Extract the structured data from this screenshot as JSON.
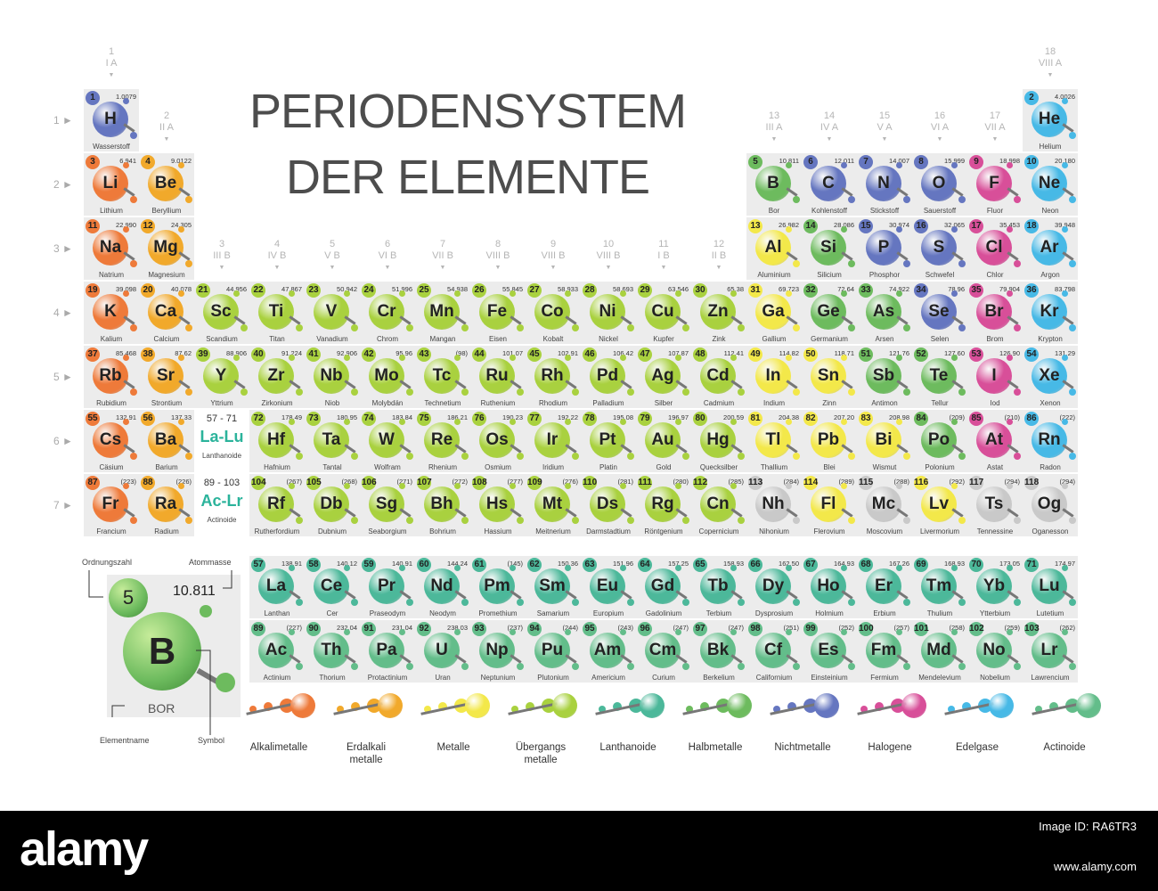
{
  "title_line1": "PERIODENSYSTEM",
  "title_line2": "DER ELEMENTE",
  "colors": {
    "alkali": "#ee7a3a",
    "alkaline": "#f1a92b",
    "metal": "#f3e84a",
    "transition": "#a9d13f",
    "lanthanide": "#4cb89a",
    "metalloid": "#6dbb5e",
    "nonmetal": "#6576c0",
    "halogen": "#d84f99",
    "noble": "#47b9e6",
    "actinide": "#63bd8a",
    "unknown": "#c9c9c9"
  },
  "groups": [
    {
      "n": "1",
      "r": "I A"
    },
    {
      "n": "2",
      "r": "II A"
    },
    {
      "n": "3",
      "r": "III B"
    },
    {
      "n": "4",
      "r": "IV B"
    },
    {
      "n": "5",
      "r": "V B"
    },
    {
      "n": "6",
      "r": "VI B"
    },
    {
      "n": "7",
      "r": "VII B"
    },
    {
      "n": "8",
      "r": "VIII B"
    },
    {
      "n": "9",
      "r": "VIII B"
    },
    {
      "n": "10",
      "r": "VIII B"
    },
    {
      "n": "11",
      "r": "I B"
    },
    {
      "n": "12",
      "r": "II B"
    },
    {
      "n": "13",
      "r": "III A"
    },
    {
      "n": "14",
      "r": "IV A"
    },
    {
      "n": "15",
      "r": "V A"
    },
    {
      "n": "16",
      "r": "VI A"
    },
    {
      "n": "17",
      "r": "VII A"
    },
    {
      "n": "18",
      "r": "VIII A"
    }
  ],
  "periods": [
    "1 ►",
    "2 ►",
    "3 ►",
    "4 ►",
    "5 ►",
    "6 ►",
    "7 ►"
  ],
  "placeholders": [
    {
      "range": "57 - 71",
      "sym": "La-Lu",
      "name": "Lanthanoide",
      "row": 6
    },
    {
      "range": "89 - 103",
      "sym": "Ac-Lr",
      "name": "Actinoide",
      "row": 7
    }
  ],
  "elements": [
    {
      "z": 1,
      "s": "H",
      "m": "1.0079",
      "n": "Wasserstoff",
      "g": 1,
      "p": 1,
      "c": "nonmetal"
    },
    {
      "z": 2,
      "s": "He",
      "m": "4.0026",
      "n": "Helium",
      "g": 18,
      "p": 1,
      "c": "noble"
    },
    {
      "z": 3,
      "s": "Li",
      "m": "6.941",
      "n": "Lithium",
      "g": 1,
      "p": 2,
      "c": "alkali"
    },
    {
      "z": 4,
      "s": "Be",
      "m": "9.0122",
      "n": "Beryllium",
      "g": 2,
      "p": 2,
      "c": "alkaline"
    },
    {
      "z": 5,
      "s": "B",
      "m": "10.811",
      "n": "Bor",
      "g": 13,
      "p": 2,
      "c": "metalloid"
    },
    {
      "z": 6,
      "s": "C",
      "m": "12.011",
      "n": "Kohlenstoff",
      "g": 14,
      "p": 2,
      "c": "nonmetal"
    },
    {
      "z": 7,
      "s": "N",
      "m": "14.007",
      "n": "Stickstoff",
      "g": 15,
      "p": 2,
      "c": "nonmetal"
    },
    {
      "z": 8,
      "s": "O",
      "m": "15.999",
      "n": "Sauerstoff",
      "g": 16,
      "p": 2,
      "c": "nonmetal"
    },
    {
      "z": 9,
      "s": "F",
      "m": "18.998",
      "n": "Fluor",
      "g": 17,
      "p": 2,
      "c": "halogen"
    },
    {
      "z": 10,
      "s": "Ne",
      "m": "20.180",
      "n": "Neon",
      "g": 18,
      "p": 2,
      "c": "noble"
    },
    {
      "z": 11,
      "s": "Na",
      "m": "22.990",
      "n": "Natrium",
      "g": 1,
      "p": 3,
      "c": "alkali"
    },
    {
      "z": 12,
      "s": "Mg",
      "m": "24.305",
      "n": "Magnesium",
      "g": 2,
      "p": 3,
      "c": "alkaline"
    },
    {
      "z": 13,
      "s": "Al",
      "m": "26.982",
      "n": "Aluminium",
      "g": 13,
      "p": 3,
      "c": "metal"
    },
    {
      "z": 14,
      "s": "Si",
      "m": "28.086",
      "n": "Silicium",
      "g": 14,
      "p": 3,
      "c": "metalloid"
    },
    {
      "z": 15,
      "s": "P",
      "m": "30.974",
      "n": "Phosphor",
      "g": 15,
      "p": 3,
      "c": "nonmetal"
    },
    {
      "z": 16,
      "s": "S",
      "m": "32.065",
      "n": "Schwefel",
      "g": 16,
      "p": 3,
      "c": "nonmetal"
    },
    {
      "z": 17,
      "s": "Cl",
      "m": "35.453",
      "n": "Chlor",
      "g": 17,
      "p": 3,
      "c": "halogen"
    },
    {
      "z": 18,
      "s": "Ar",
      "m": "39.948",
      "n": "Argon",
      "g": 18,
      "p": 3,
      "c": "noble"
    },
    {
      "z": 19,
      "s": "K",
      "m": "39.098",
      "n": "Kalium",
      "g": 1,
      "p": 4,
      "c": "alkali"
    },
    {
      "z": 20,
      "s": "Ca",
      "m": "40.078",
      "n": "Calcium",
      "g": 2,
      "p": 4,
      "c": "alkaline"
    },
    {
      "z": 21,
      "s": "Sc",
      "m": "44.956",
      "n": "Scandium",
      "g": 3,
      "p": 4,
      "c": "transition"
    },
    {
      "z": 22,
      "s": "Ti",
      "m": "47.867",
      "n": "Titan",
      "g": 4,
      "p": 4,
      "c": "transition"
    },
    {
      "z": 23,
      "s": "V",
      "m": "50.942",
      "n": "Vanadium",
      "g": 5,
      "p": 4,
      "c": "transition"
    },
    {
      "z": 24,
      "s": "Cr",
      "m": "51.996",
      "n": "Chrom",
      "g": 6,
      "p": 4,
      "c": "transition"
    },
    {
      "z": 25,
      "s": "Mn",
      "m": "54.938",
      "n": "Mangan",
      "g": 7,
      "p": 4,
      "c": "transition"
    },
    {
      "z": 26,
      "s": "Fe",
      "m": "55.845",
      "n": "Eisen",
      "g": 8,
      "p": 4,
      "c": "transition"
    },
    {
      "z": 27,
      "s": "Co",
      "m": "58.933",
      "n": "Kobalt",
      "g": 9,
      "p": 4,
      "c": "transition"
    },
    {
      "z": 28,
      "s": "Ni",
      "m": "58.693",
      "n": "Nickel",
      "g": 10,
      "p": 4,
      "c": "transition"
    },
    {
      "z": 29,
      "s": "Cu",
      "m": "63.546",
      "n": "Kupfer",
      "g": 11,
      "p": 4,
      "c": "transition"
    },
    {
      "z": 30,
      "s": "Zn",
      "m": "65.38",
      "n": "Zink",
      "g": 12,
      "p": 4,
      "c": "transition"
    },
    {
      "z": 31,
      "s": "Ga",
      "m": "69.723",
      "n": "Gallium",
      "g": 13,
      "p": 4,
      "c": "metal"
    },
    {
      "z": 32,
      "s": "Ge",
      "m": "72.64",
      "n": "Germanium",
      "g": 14,
      "p": 4,
      "c": "metalloid"
    },
    {
      "z": 33,
      "s": "As",
      "m": "74.922",
      "n": "Arsen",
      "g": 15,
      "p": 4,
      "c": "metalloid"
    },
    {
      "z": 34,
      "s": "Se",
      "m": "78.96",
      "n": "Selen",
      "g": 16,
      "p": 4,
      "c": "nonmetal"
    },
    {
      "z": 35,
      "s": "Br",
      "m": "79.904",
      "n": "Brom",
      "g": 17,
      "p": 4,
      "c": "halogen"
    },
    {
      "z": 36,
      "s": "Kr",
      "m": "83.798",
      "n": "Krypton",
      "g": 18,
      "p": 4,
      "c": "noble"
    },
    {
      "z": 37,
      "s": "Rb",
      "m": "85.468",
      "n": "Rubidium",
      "g": 1,
      "p": 5,
      "c": "alkali"
    },
    {
      "z": 38,
      "s": "Sr",
      "m": "87.62",
      "n": "Strontium",
      "g": 2,
      "p": 5,
      "c": "alkaline"
    },
    {
      "z": 39,
      "s": "Y",
      "m": "88.906",
      "n": "Yttrium",
      "g": 3,
      "p": 5,
      "c": "transition"
    },
    {
      "z": 40,
      "s": "Zr",
      "m": "91.224",
      "n": "Zirkonium",
      "g": 4,
      "p": 5,
      "c": "transition"
    },
    {
      "z": 41,
      "s": "Nb",
      "m": "92.906",
      "n": "Niob",
      "g": 5,
      "p": 5,
      "c": "transition"
    },
    {
      "z": 42,
      "s": "Mo",
      "m": "95.96",
      "n": "Molybdän",
      "g": 6,
      "p": 5,
      "c": "transition"
    },
    {
      "z": 43,
      "s": "Tc",
      "m": "(98)",
      "n": "Technetium",
      "g": 7,
      "p": 5,
      "c": "transition"
    },
    {
      "z": 44,
      "s": "Ru",
      "m": "101.07",
      "n": "Ruthenium",
      "g": 8,
      "p": 5,
      "c": "transition"
    },
    {
      "z": 45,
      "s": "Rh",
      "m": "102.91",
      "n": "Rhodium",
      "g": 9,
      "p": 5,
      "c": "transition"
    },
    {
      "z": 46,
      "s": "Pd",
      "m": "106.42",
      "n": "Palladium",
      "g": 10,
      "p": 5,
      "c": "transition"
    },
    {
      "z": 47,
      "s": "Ag",
      "m": "107.87",
      "n": "Silber",
      "g": 11,
      "p": 5,
      "c": "transition"
    },
    {
      "z": 48,
      "s": "Cd",
      "m": "112.41",
      "n": "Cadmium",
      "g": 12,
      "p": 5,
      "c": "transition"
    },
    {
      "z": 49,
      "s": "In",
      "m": "114.82",
      "n": "Indium",
      "g": 13,
      "p": 5,
      "c": "metal"
    },
    {
      "z": 50,
      "s": "Sn",
      "m": "118.71",
      "n": "Zinn",
      "g": 14,
      "p": 5,
      "c": "metal"
    },
    {
      "z": 51,
      "s": "Sb",
      "m": "121.76",
      "n": "Antimon",
      "g": 15,
      "p": 5,
      "c": "metalloid"
    },
    {
      "z": 52,
      "s": "Te",
      "m": "127.60",
      "n": "Tellur",
      "g": 16,
      "p": 5,
      "c": "metalloid"
    },
    {
      "z": 53,
      "s": "I",
      "m": "126.90",
      "n": "Iod",
      "g": 17,
      "p": 5,
      "c": "halogen"
    },
    {
      "z": 54,
      "s": "Xe",
      "m": "131.29",
      "n": "Xenon",
      "g": 18,
      "p": 5,
      "c": "noble"
    },
    {
      "z": 55,
      "s": "Cs",
      "m": "132.91",
      "n": "Cäsium",
      "g": 1,
      "p": 6,
      "c": "alkali"
    },
    {
      "z": 56,
      "s": "Ba",
      "m": "137.33",
      "n": "Barium",
      "g": 2,
      "p": 6,
      "c": "alkaline"
    },
    {
      "z": 72,
      "s": "Hf",
      "m": "178.49",
      "n": "Hafnium",
      "g": 4,
      "p": 6,
      "c": "transition"
    },
    {
      "z": 73,
      "s": "Ta",
      "m": "180.95",
      "n": "Tantal",
      "g": 5,
      "p": 6,
      "c": "transition"
    },
    {
      "z": 74,
      "s": "W",
      "m": "183.84",
      "n": "Wolfram",
      "g": 6,
      "p": 6,
      "c": "transition"
    },
    {
      "z": 75,
      "s": "Re",
      "m": "186.21",
      "n": "Rhenium",
      "g": 7,
      "p": 6,
      "c": "transition"
    },
    {
      "z": 76,
      "s": "Os",
      "m": "190.23",
      "n": "Osmium",
      "g": 8,
      "p": 6,
      "c": "transition"
    },
    {
      "z": 77,
      "s": "Ir",
      "m": "192.22",
      "n": "Iridium",
      "g": 9,
      "p": 6,
      "c": "transition"
    },
    {
      "z": 78,
      "s": "Pt",
      "m": "195.08",
      "n": "Platin",
      "g": 10,
      "p": 6,
      "c": "transition"
    },
    {
      "z": 79,
      "s": "Au",
      "m": "196.97",
      "n": "Gold",
      "g": 11,
      "p": 6,
      "c": "transition"
    },
    {
      "z": 80,
      "s": "Hg",
      "m": "200.59",
      "n": "Quecksilber",
      "g": 12,
      "p": 6,
      "c": "transition"
    },
    {
      "z": 81,
      "s": "Tl",
      "m": "204.38",
      "n": "Thallium",
      "g": 13,
      "p": 6,
      "c": "metal"
    },
    {
      "z": 82,
      "s": "Pb",
      "m": "207.20",
      "n": "Blei",
      "g": 14,
      "p": 6,
      "c": "metal"
    },
    {
      "z": 83,
      "s": "Bi",
      "m": "208.98",
      "n": "Wismut",
      "g": 15,
      "p": 6,
      "c": "metal"
    },
    {
      "z": 84,
      "s": "Po",
      "m": "(209)",
      "n": "Polonium",
      "g": 16,
      "p": 6,
      "c": "metalloid"
    },
    {
      "z": 85,
      "s": "At",
      "m": "(210)",
      "n": "Astat",
      "g": 17,
      "p": 6,
      "c": "halogen"
    },
    {
      "z": 86,
      "s": "Rn",
      "m": "(222)",
      "n": "Radon",
      "g": 18,
      "p": 6,
      "c": "noble"
    },
    {
      "z": 87,
      "s": "Fr",
      "m": "(223)",
      "n": "Francium",
      "g": 1,
      "p": 7,
      "c": "alkali"
    },
    {
      "z": 88,
      "s": "Ra",
      "m": "(226)",
      "n": "Radium",
      "g": 2,
      "p": 7,
      "c": "alkaline"
    },
    {
      "z": 104,
      "s": "Rf",
      "m": "(267)",
      "n": "Rutherfordium",
      "g": 4,
      "p": 7,
      "c": "transition"
    },
    {
      "z": 105,
      "s": "Db",
      "m": "(268)",
      "n": "Dubnium",
      "g": 5,
      "p": 7,
      "c": "transition"
    },
    {
      "z": 106,
      "s": "Sg",
      "m": "(271)",
      "n": "Seaborgium",
      "g": 6,
      "p": 7,
      "c": "transition"
    },
    {
      "z": 107,
      "s": "Bh",
      "m": "(272)",
      "n": "Bohrium",
      "g": 7,
      "p": 7,
      "c": "transition"
    },
    {
      "z": 108,
      "s": "Hs",
      "m": "(277)",
      "n": "Hassium",
      "g": 8,
      "p": 7,
      "c": "transition"
    },
    {
      "z": 109,
      "s": "Mt",
      "m": "(276)",
      "n": "Meitnerium",
      "g": 9,
      "p": 7,
      "c": "transition"
    },
    {
      "z": 110,
      "s": "Ds",
      "m": "(281)",
      "n": "Darmstadtium",
      "g": 10,
      "p": 7,
      "c": "transition"
    },
    {
      "z": 111,
      "s": "Rg",
      "m": "(280)",
      "n": "Röntgenium",
      "g": 11,
      "p": 7,
      "c": "transition"
    },
    {
      "z": 112,
      "s": "Cn",
      "m": "(285)",
      "n": "Copernicium",
      "g": 12,
      "p": 7,
      "c": "transition"
    },
    {
      "z": 113,
      "s": "Nh",
      "m": "(284)",
      "n": "Nihonium",
      "g": 13,
      "p": 7,
      "c": "unknown"
    },
    {
      "z": 114,
      "s": "Fl",
      "m": "(289)",
      "n": "Flerovium",
      "g": 14,
      "p": 7,
      "c": "metal"
    },
    {
      "z": 115,
      "s": "Mc",
      "m": "(288)",
      "n": "Moscovium",
      "g": 15,
      "p": 7,
      "c": "unknown"
    },
    {
      "z": 116,
      "s": "Lv",
      "m": "(292)",
      "n": "Livermorium",
      "g": 16,
      "p": 7,
      "c": "metal"
    },
    {
      "z": 117,
      "s": "Ts",
      "m": "(294)",
      "n": "Tennessine",
      "g": 17,
      "p": 7,
      "c": "unknown"
    },
    {
      "z": 118,
      "s": "Og",
      "m": "(294)",
      "n": "Oganesson",
      "g": 18,
      "p": 7,
      "c": "unknown"
    },
    {
      "z": 57,
      "s": "La",
      "m": "138.91",
      "n": "Lanthan",
      "g": 4,
      "p": 9,
      "c": "lanthanide"
    },
    {
      "z": 58,
      "s": "Ce",
      "m": "140.12",
      "n": "Cer",
      "g": 5,
      "p": 9,
      "c": "lanthanide"
    },
    {
      "z": 59,
      "s": "Pr",
      "m": "140.91",
      "n": "Praseodym",
      "g": 6,
      "p": 9,
      "c": "lanthanide"
    },
    {
      "z": 60,
      "s": "Nd",
      "m": "144.24",
      "n": "Neodym",
      "g": 7,
      "p": 9,
      "c": "lanthanide"
    },
    {
      "z": 61,
      "s": "Pm",
      "m": "(145)",
      "n": "Promethium",
      "g": 8,
      "p": 9,
      "c": "lanthanide"
    },
    {
      "z": 62,
      "s": "Sm",
      "m": "150.36",
      "n": "Samarium",
      "g": 9,
      "p": 9,
      "c": "lanthanide"
    },
    {
      "z": 63,
      "s": "Eu",
      "m": "151.96",
      "n": "Europium",
      "g": 10,
      "p": 9,
      "c": "lanthanide"
    },
    {
      "z": 64,
      "s": "Gd",
      "m": "157.25",
      "n": "Gadolinium",
      "g": 11,
      "p": 9,
      "c": "lanthanide"
    },
    {
      "z": 65,
      "s": "Tb",
      "m": "158.93",
      "n": "Terbium",
      "g": 12,
      "p": 9,
      "c": "lanthanide"
    },
    {
      "z": 66,
      "s": "Dy",
      "m": "162.50",
      "n": "Dysprosium",
      "g": 13,
      "p": 9,
      "c": "lanthanide"
    },
    {
      "z": 67,
      "s": "Ho",
      "m": "164.93",
      "n": "Holmium",
      "g": 14,
      "p": 9,
      "c": "lanthanide"
    },
    {
      "z": 68,
      "s": "Er",
      "m": "167.26",
      "n": "Erbium",
      "g": 15,
      "p": 9,
      "c": "lanthanide"
    },
    {
      "z": 69,
      "s": "Tm",
      "m": "168.93",
      "n": "Thulium",
      "g": 16,
      "p": 9,
      "c": "lanthanide"
    },
    {
      "z": 70,
      "s": "Yb",
      "m": "173.05",
      "n": "Ytterbium",
      "g": 17,
      "p": 9,
      "c": "lanthanide"
    },
    {
      "z": 71,
      "s": "Lu",
      "m": "174.97",
      "n": "Lutetium",
      "g": 18,
      "p": 9,
      "c": "lanthanide"
    },
    {
      "z": 89,
      "s": "Ac",
      "m": "(227)",
      "n": "Actinium",
      "g": 4,
      "p": 10,
      "c": "actinide"
    },
    {
      "z": 90,
      "s": "Th",
      "m": "232.04",
      "n": "Thorium",
      "g": 5,
      "p": 10,
      "c": "actinide"
    },
    {
      "z": 91,
      "s": "Pa",
      "m": "231.04",
      "n": "Protactinium",
      "g": 6,
      "p": 10,
      "c": "actinide"
    },
    {
      "z": 92,
      "s": "U",
      "m": "238.03",
      "n": "Uran",
      "g": 7,
      "p": 10,
      "c": "actinide"
    },
    {
      "z": 93,
      "s": "Np",
      "m": "(237)",
      "n": "Neptunium",
      "g": 8,
      "p": 10,
      "c": "actinide"
    },
    {
      "z": 94,
      "s": "Pu",
      "m": "(244)",
      "n": "Plutonium",
      "g": 9,
      "p": 10,
      "c": "actinide"
    },
    {
      "z": 95,
      "s": "Am",
      "m": "(243)",
      "n": "Americium",
      "g": 10,
      "p": 10,
      "c": "actinide"
    },
    {
      "z": 96,
      "s": "Cm",
      "m": "(247)",
      "n": "Curium",
      "g": 11,
      "p": 10,
      "c": "actinide"
    },
    {
      "z": 97,
      "s": "Bk",
      "m": "(247)",
      "n": "Berkelium",
      "g": 12,
      "p": 10,
      "c": "actinide"
    },
    {
      "z": 98,
      "s": "Cf",
      "m": "(251)",
      "n": "Californium",
      "g": 13,
      "p": 10,
      "c": "actinide"
    },
    {
      "z": 99,
      "s": "Es",
      "m": "(252)",
      "n": "Einsteinium",
      "g": 14,
      "p": 10,
      "c": "actinide"
    },
    {
      "z": 100,
      "s": "Fm",
      "m": "(257)",
      "n": "Fermium",
      "g": 15,
      "p": 10,
      "c": "actinide"
    },
    {
      "z": 101,
      "s": "Md",
      "m": "(258)",
      "n": "Mendelevium",
      "g": 16,
      "p": 10,
      "c": "actinide"
    },
    {
      "z": 102,
      "s": "No",
      "m": "(259)",
      "n": "Nobelium",
      "g": 17,
      "p": 10,
      "c": "actinide"
    },
    {
      "z": 103,
      "s": "Lr",
      "m": "(262)",
      "n": "Lawrencium",
      "g": 18,
      "p": 10,
      "c": "actinide"
    }
  ],
  "legend": {
    "ordnungszahl_label": "Ordnungszahl",
    "atommasse_label": "Atommasse",
    "elementname_label": "Elementname",
    "symbol_label": "Symbol",
    "example_number": "5",
    "example_mass": "10.811",
    "example_symbol": "B",
    "example_name": "BOR"
  },
  "categories": [
    {
      "label": "Alkalimetalle",
      "c": "alkali"
    },
    {
      "label": "Erdalkali\nmetalle",
      "c": "alkaline"
    },
    {
      "label": "Metalle",
      "c": "metal"
    },
    {
      "label": "Übergangs\nmetalle",
      "c": "transition"
    },
    {
      "label": "Lanthanoide",
      "c": "lanthanide"
    },
    {
      "label": "Halbmetalle",
      "c": "metalloid"
    },
    {
      "label": "Nichtmetalle",
      "c": "nonmetal"
    },
    {
      "label": "Halogene",
      "c": "halogen"
    },
    {
      "label": "Edelgase",
      "c": "noble"
    },
    {
      "label": "Actinoide",
      "c": "actinide"
    }
  ],
  "footer": {
    "brand": "alamy",
    "image_id": "Image ID: RA6TR3",
    "site": "www.alamy.com"
  }
}
